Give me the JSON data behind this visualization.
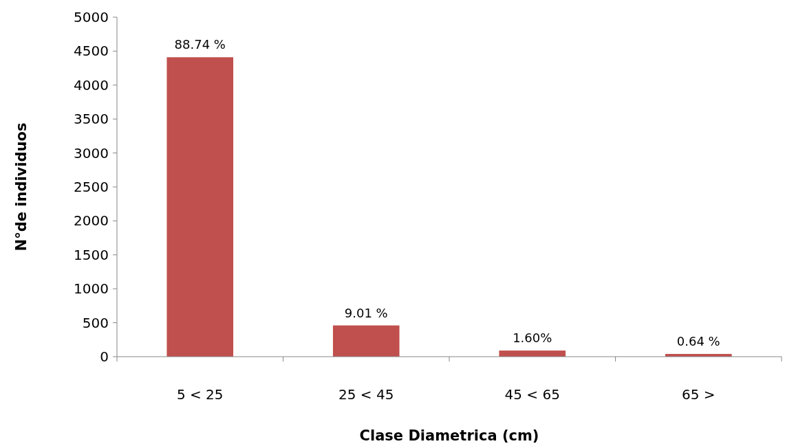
{
  "chart_data": {
    "type": "bar",
    "xlabel": "Clase Diametrica (cm)",
    "ylabel": "N°de individuos",
    "categories": [
      "5 < 25",
      "25 < 45",
      "45 < 65",
      "65 >"
    ],
    "values": [
      4410,
      460,
      90,
      40
    ],
    "annotations": [
      {
        "text": "88.74 %",
        "x": "5 < 25",
        "y": 4410
      },
      {
        "text": "9.01 %",
        "x": "25 < 45",
        "y": 460
      },
      {
        "text": "1.60%",
        "x": "45 < 65",
        "y": 90
      },
      {
        "text": "0.64 %",
        "x": "65 >",
        "y": 40
      }
    ],
    "color": "#c0504d",
    "ylim": [
      0,
      5000
    ],
    "yticks": [
      0,
      500,
      1000,
      1500,
      2000,
      2500,
      3000,
      3500,
      4000,
      4500,
      5000
    ],
    "grid": false
  }
}
